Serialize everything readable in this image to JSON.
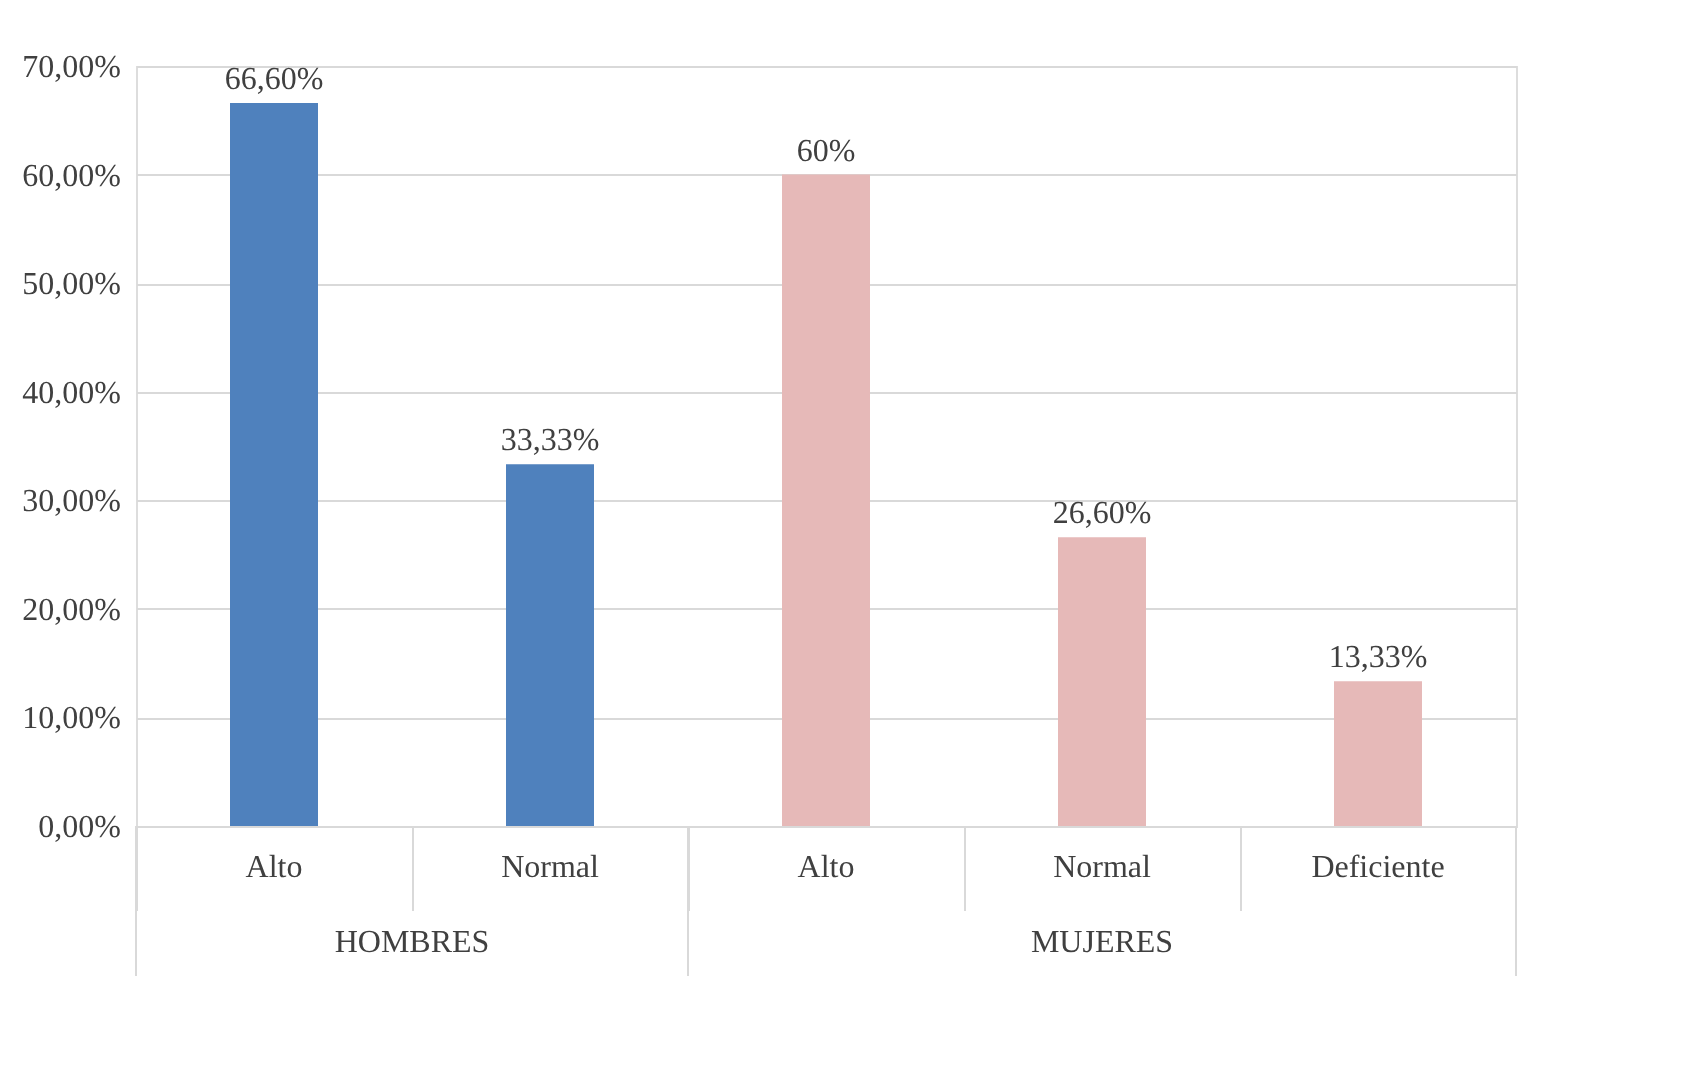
{
  "chart_data": {
    "type": "bar",
    "categories": [
      "Alto",
      "Normal",
      "Alto",
      "Normal",
      "Deficiente"
    ],
    "values": [
      66.6,
      33.33,
      60,
      26.6,
      13.33
    ],
    "colors": [
      "#4f81bd",
      "#4f81bd",
      "#e6b9b8",
      "#e6b9b8",
      "#e6b9b8"
    ],
    "value_labels": [
      "66,60%",
      "33,33%",
      "60%",
      "26,60%",
      "13,33%"
    ],
    "annotations": [
      "HOMBRES",
      "MUJERES"
    ],
    "ylim": [
      0,
      70
    ],
    "yticks": [
      {
        "value": 0,
        "label": "0,00%"
      },
      {
        "value": 10,
        "label": "10,00%"
      },
      {
        "value": 20,
        "label": "20,00%"
      },
      {
        "value": 30,
        "label": "30,00%"
      },
      {
        "value": 40,
        "label": "40,00%"
      },
      {
        "value": 50,
        "label": "50,00%"
      },
      {
        "value": 60,
        "label": "60,00%"
      },
      {
        "value": 70,
        "label": "70,00%"
      }
    ],
    "grid": "y"
  }
}
